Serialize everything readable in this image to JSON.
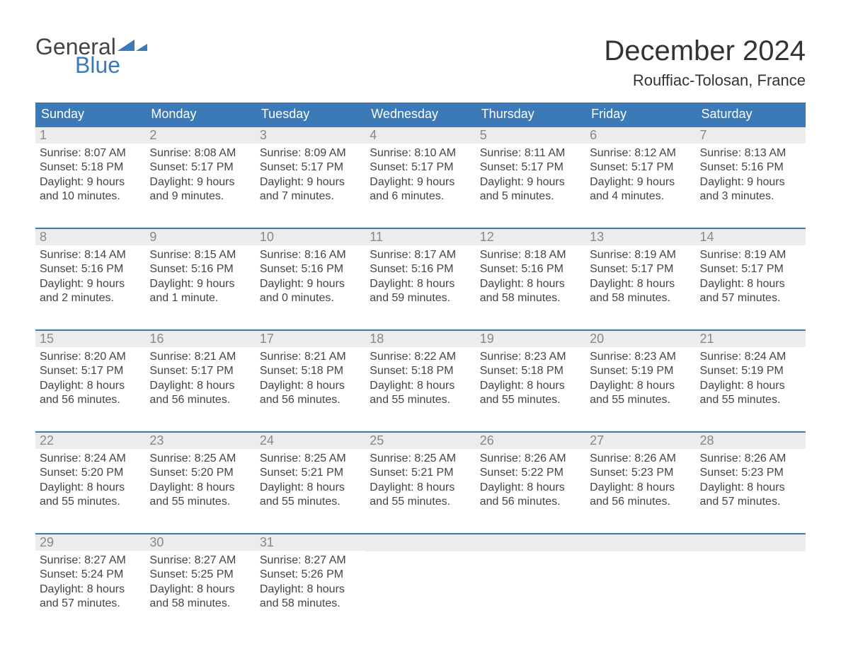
{
  "logo": {
    "text1": "General",
    "text2": "Blue",
    "shape_color": "#3b79b7"
  },
  "title": "December 2024",
  "subtitle": "Rouffiac-Tolosan, France",
  "colors": {
    "header_bg": "#3b79b7",
    "header_text": "#ffffff",
    "date_bg": "#ececec",
    "date_text": "#888888",
    "body_text": "#444444",
    "week_divider": "#3b79b7",
    "page_bg": "#ffffff"
  },
  "typography": {
    "title_fontsize": 40,
    "subtitle_fontsize": 22,
    "header_fontsize": 18,
    "date_fontsize": 18,
    "body_fontsize": 16,
    "font_family": "Arial"
  },
  "day_names": [
    "Sunday",
    "Monday",
    "Tuesday",
    "Wednesday",
    "Thursday",
    "Friday",
    "Saturday"
  ],
  "weeks": [
    [
      {
        "date": "1",
        "sunrise": "Sunrise: 8:07 AM",
        "sunset": "Sunset: 5:18 PM",
        "daylight1": "Daylight: 9 hours",
        "daylight2": "and 10 minutes."
      },
      {
        "date": "2",
        "sunrise": "Sunrise: 8:08 AM",
        "sunset": "Sunset: 5:17 PM",
        "daylight1": "Daylight: 9 hours",
        "daylight2": "and 9 minutes."
      },
      {
        "date": "3",
        "sunrise": "Sunrise: 8:09 AM",
        "sunset": "Sunset: 5:17 PM",
        "daylight1": "Daylight: 9 hours",
        "daylight2": "and 7 minutes."
      },
      {
        "date": "4",
        "sunrise": "Sunrise: 8:10 AM",
        "sunset": "Sunset: 5:17 PM",
        "daylight1": "Daylight: 9 hours",
        "daylight2": "and 6 minutes."
      },
      {
        "date": "5",
        "sunrise": "Sunrise: 8:11 AM",
        "sunset": "Sunset: 5:17 PM",
        "daylight1": "Daylight: 9 hours",
        "daylight2": "and 5 minutes."
      },
      {
        "date": "6",
        "sunrise": "Sunrise: 8:12 AM",
        "sunset": "Sunset: 5:17 PM",
        "daylight1": "Daylight: 9 hours",
        "daylight2": "and 4 minutes."
      },
      {
        "date": "7",
        "sunrise": "Sunrise: 8:13 AM",
        "sunset": "Sunset: 5:16 PM",
        "daylight1": "Daylight: 9 hours",
        "daylight2": "and 3 minutes."
      }
    ],
    [
      {
        "date": "8",
        "sunrise": "Sunrise: 8:14 AM",
        "sunset": "Sunset: 5:16 PM",
        "daylight1": "Daylight: 9 hours",
        "daylight2": "and 2 minutes."
      },
      {
        "date": "9",
        "sunrise": "Sunrise: 8:15 AM",
        "sunset": "Sunset: 5:16 PM",
        "daylight1": "Daylight: 9 hours",
        "daylight2": "and 1 minute."
      },
      {
        "date": "10",
        "sunrise": "Sunrise: 8:16 AM",
        "sunset": "Sunset: 5:16 PM",
        "daylight1": "Daylight: 9 hours",
        "daylight2": "and 0 minutes."
      },
      {
        "date": "11",
        "sunrise": "Sunrise: 8:17 AM",
        "sunset": "Sunset: 5:16 PM",
        "daylight1": "Daylight: 8 hours",
        "daylight2": "and 59 minutes."
      },
      {
        "date": "12",
        "sunrise": "Sunrise: 8:18 AM",
        "sunset": "Sunset: 5:16 PM",
        "daylight1": "Daylight: 8 hours",
        "daylight2": "and 58 minutes."
      },
      {
        "date": "13",
        "sunrise": "Sunrise: 8:19 AM",
        "sunset": "Sunset: 5:17 PM",
        "daylight1": "Daylight: 8 hours",
        "daylight2": "and 58 minutes."
      },
      {
        "date": "14",
        "sunrise": "Sunrise: 8:19 AM",
        "sunset": "Sunset: 5:17 PM",
        "daylight1": "Daylight: 8 hours",
        "daylight2": "and 57 minutes."
      }
    ],
    [
      {
        "date": "15",
        "sunrise": "Sunrise: 8:20 AM",
        "sunset": "Sunset: 5:17 PM",
        "daylight1": "Daylight: 8 hours",
        "daylight2": "and 56 minutes."
      },
      {
        "date": "16",
        "sunrise": "Sunrise: 8:21 AM",
        "sunset": "Sunset: 5:17 PM",
        "daylight1": "Daylight: 8 hours",
        "daylight2": "and 56 minutes."
      },
      {
        "date": "17",
        "sunrise": "Sunrise: 8:21 AM",
        "sunset": "Sunset: 5:18 PM",
        "daylight1": "Daylight: 8 hours",
        "daylight2": "and 56 minutes."
      },
      {
        "date": "18",
        "sunrise": "Sunrise: 8:22 AM",
        "sunset": "Sunset: 5:18 PM",
        "daylight1": "Daylight: 8 hours",
        "daylight2": "and 55 minutes."
      },
      {
        "date": "19",
        "sunrise": "Sunrise: 8:23 AM",
        "sunset": "Sunset: 5:18 PM",
        "daylight1": "Daylight: 8 hours",
        "daylight2": "and 55 minutes."
      },
      {
        "date": "20",
        "sunrise": "Sunrise: 8:23 AM",
        "sunset": "Sunset: 5:19 PM",
        "daylight1": "Daylight: 8 hours",
        "daylight2": "and 55 minutes."
      },
      {
        "date": "21",
        "sunrise": "Sunrise: 8:24 AM",
        "sunset": "Sunset: 5:19 PM",
        "daylight1": "Daylight: 8 hours",
        "daylight2": "and 55 minutes."
      }
    ],
    [
      {
        "date": "22",
        "sunrise": "Sunrise: 8:24 AM",
        "sunset": "Sunset: 5:20 PM",
        "daylight1": "Daylight: 8 hours",
        "daylight2": "and 55 minutes."
      },
      {
        "date": "23",
        "sunrise": "Sunrise: 8:25 AM",
        "sunset": "Sunset: 5:20 PM",
        "daylight1": "Daylight: 8 hours",
        "daylight2": "and 55 minutes."
      },
      {
        "date": "24",
        "sunrise": "Sunrise: 8:25 AM",
        "sunset": "Sunset: 5:21 PM",
        "daylight1": "Daylight: 8 hours",
        "daylight2": "and 55 minutes."
      },
      {
        "date": "25",
        "sunrise": "Sunrise: 8:25 AM",
        "sunset": "Sunset: 5:21 PM",
        "daylight1": "Daylight: 8 hours",
        "daylight2": "and 55 minutes."
      },
      {
        "date": "26",
        "sunrise": "Sunrise: 8:26 AM",
        "sunset": "Sunset: 5:22 PM",
        "daylight1": "Daylight: 8 hours",
        "daylight2": "and 56 minutes."
      },
      {
        "date": "27",
        "sunrise": "Sunrise: 8:26 AM",
        "sunset": "Sunset: 5:23 PM",
        "daylight1": "Daylight: 8 hours",
        "daylight2": "and 56 minutes."
      },
      {
        "date": "28",
        "sunrise": "Sunrise: 8:26 AM",
        "sunset": "Sunset: 5:23 PM",
        "daylight1": "Daylight: 8 hours",
        "daylight2": "and 57 minutes."
      }
    ],
    [
      {
        "date": "29",
        "sunrise": "Sunrise: 8:27 AM",
        "sunset": "Sunset: 5:24 PM",
        "daylight1": "Daylight: 8 hours",
        "daylight2": "and 57 minutes."
      },
      {
        "date": "30",
        "sunrise": "Sunrise: 8:27 AM",
        "sunset": "Sunset: 5:25 PM",
        "daylight1": "Daylight: 8 hours",
        "daylight2": "and 58 minutes."
      },
      {
        "date": "31",
        "sunrise": "Sunrise: 8:27 AM",
        "sunset": "Sunset: 5:26 PM",
        "daylight1": "Daylight: 8 hours",
        "daylight2": "and 58 minutes."
      },
      {
        "empty": true
      },
      {
        "empty": true
      },
      {
        "empty": true
      },
      {
        "empty": true
      }
    ]
  ]
}
